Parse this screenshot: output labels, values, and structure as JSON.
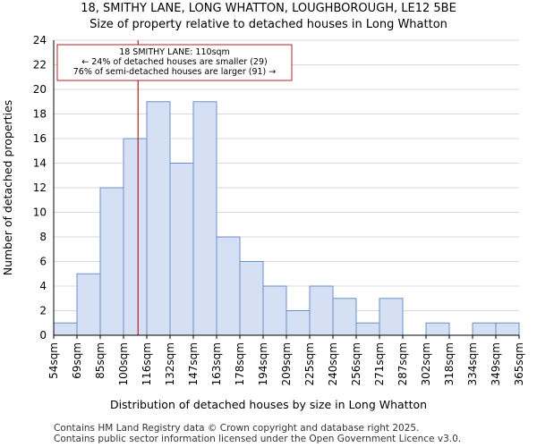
{
  "chart_data": {
    "type": "bar",
    "title": "18, SMITHY LANE, LONG WHATTON, LOUGHBOROUGH, LE12 5BE",
    "subtitle": "Size of property relative to detached houses in Long Whatton",
    "xlabel": "Distribution of detached houses by size in Long Whatton",
    "ylabel": "Number of detached properties",
    "bin_edges": [
      "54sqm",
      "69sqm",
      "85sqm",
      "100sqm",
      "116sqm",
      "132sqm",
      "147sqm",
      "163sqm",
      "178sqm",
      "194sqm",
      "209sqm",
      "225sqm",
      "240sqm",
      "256sqm",
      "271sqm",
      "287sqm",
      "302sqm",
      "318sqm",
      "334sqm",
      "349sqm",
      "365sqm"
    ],
    "values": [
      1,
      5,
      12,
      16,
      19,
      14,
      19,
      8,
      6,
      4,
      2,
      4,
      3,
      1,
      3,
      0,
      1,
      0,
      1,
      1
    ],
    "ylim": [
      0,
      24
    ],
    "yticks": [
      0,
      2,
      4,
      6,
      8,
      10,
      12,
      14,
      16,
      18,
      20,
      22,
      24
    ],
    "property_size": 110,
    "bar_color": "#d6e0f5",
    "bar_edge_color": "#6b8fc8",
    "marker_color": "#b22222",
    "annotation": {
      "line1": "18 SMITHY LANE: 110sqm",
      "line2": "← 24% of detached houses are smaller (29)",
      "line3": "76% of semi-detached houses are larger (91) →"
    }
  },
  "footer": {
    "line1": "Contains HM Land Registry data © Crown copyright and database right 2025.",
    "line2": "Contains public sector information licensed under the Open Government Licence v3.0."
  }
}
